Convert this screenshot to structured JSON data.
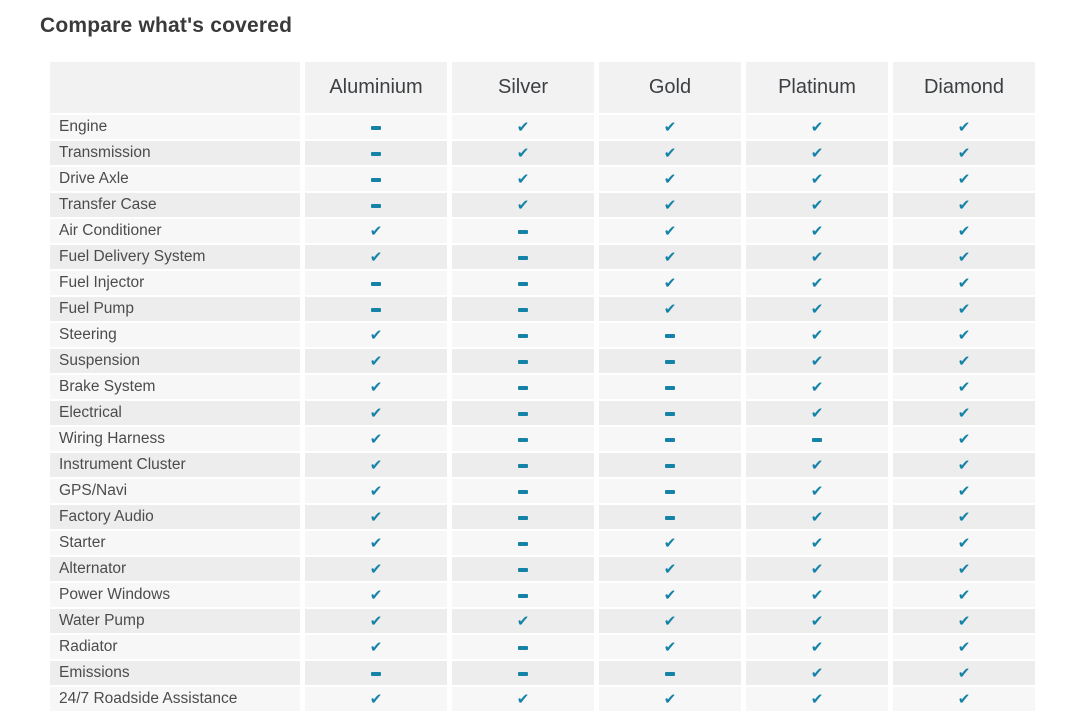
{
  "title": "Compare what's covered",
  "colors": {
    "accent_teal": "#1583a8",
    "header_bg": "#f2f2f2",
    "row_odd_bg": "#f7f7f7",
    "row_even_bg": "#ededed",
    "title_text": "#3a3a3a",
    "header_text": "#3c4043",
    "label_text": "#4c4c4c"
  },
  "icons": {
    "covered": "check-icon",
    "not_covered": "dash-icon"
  },
  "table": {
    "columns": [
      "Aluminium",
      "Silver",
      "Gold",
      "Platinum",
      "Diamond"
    ],
    "rows": [
      {
        "label": "Engine",
        "values": [
          "dash",
          "check",
          "check",
          "check",
          "check"
        ]
      },
      {
        "label": "Transmission",
        "values": [
          "dash",
          "check",
          "check",
          "check",
          "check"
        ]
      },
      {
        "label": "Drive Axle",
        "values": [
          "dash",
          "check",
          "check",
          "check",
          "check"
        ]
      },
      {
        "label": "Transfer Case",
        "values": [
          "dash",
          "check",
          "check",
          "check",
          "check"
        ]
      },
      {
        "label": "Air Conditioner",
        "values": [
          "check",
          "dash",
          "check",
          "check",
          "check"
        ]
      },
      {
        "label": "Fuel Delivery System",
        "values": [
          "check",
          "dash",
          "check",
          "check",
          "check"
        ]
      },
      {
        "label": "Fuel Injector",
        "values": [
          "dash",
          "dash",
          "check",
          "check",
          "check"
        ]
      },
      {
        "label": "Fuel Pump",
        "values": [
          "dash",
          "dash",
          "check",
          "check",
          "check"
        ]
      },
      {
        "label": "Steering",
        "values": [
          "check",
          "dash",
          "dash",
          "check",
          "check"
        ]
      },
      {
        "label": "Suspension",
        "values": [
          "check",
          "dash",
          "dash",
          "check",
          "check"
        ]
      },
      {
        "label": "Brake System",
        "values": [
          "check",
          "dash",
          "dash",
          "check",
          "check"
        ]
      },
      {
        "label": "Electrical",
        "values": [
          "check",
          "dash",
          "dash",
          "check",
          "check"
        ]
      },
      {
        "label": "Wiring Harness",
        "values": [
          "check",
          "dash",
          "dash",
          "dash",
          "check"
        ]
      },
      {
        "label": "Instrument Cluster",
        "values": [
          "check",
          "dash",
          "dash",
          "check",
          "check"
        ]
      },
      {
        "label": "GPS/Navi",
        "values": [
          "check",
          "dash",
          "dash",
          "check",
          "check"
        ]
      },
      {
        "label": "Factory Audio",
        "values": [
          "check",
          "dash",
          "dash",
          "check",
          "check"
        ]
      },
      {
        "label": "Starter",
        "values": [
          "check",
          "dash",
          "check",
          "check",
          "check"
        ]
      },
      {
        "label": "Alternator",
        "values": [
          "check",
          "dash",
          "check",
          "check",
          "check"
        ]
      },
      {
        "label": "Power Windows",
        "values": [
          "check",
          "dash",
          "check",
          "check",
          "check"
        ]
      },
      {
        "label": "Water Pump",
        "values": [
          "check",
          "check",
          "check",
          "check",
          "check"
        ]
      },
      {
        "label": "Radiator",
        "values": [
          "check",
          "dash",
          "check",
          "check",
          "check"
        ]
      },
      {
        "label": "Emissions",
        "values": [
          "dash",
          "dash",
          "dash",
          "check",
          "check"
        ]
      },
      {
        "label": "24/7 Roadside Assistance",
        "values": [
          "check",
          "check",
          "check",
          "check",
          "check"
        ]
      }
    ]
  }
}
